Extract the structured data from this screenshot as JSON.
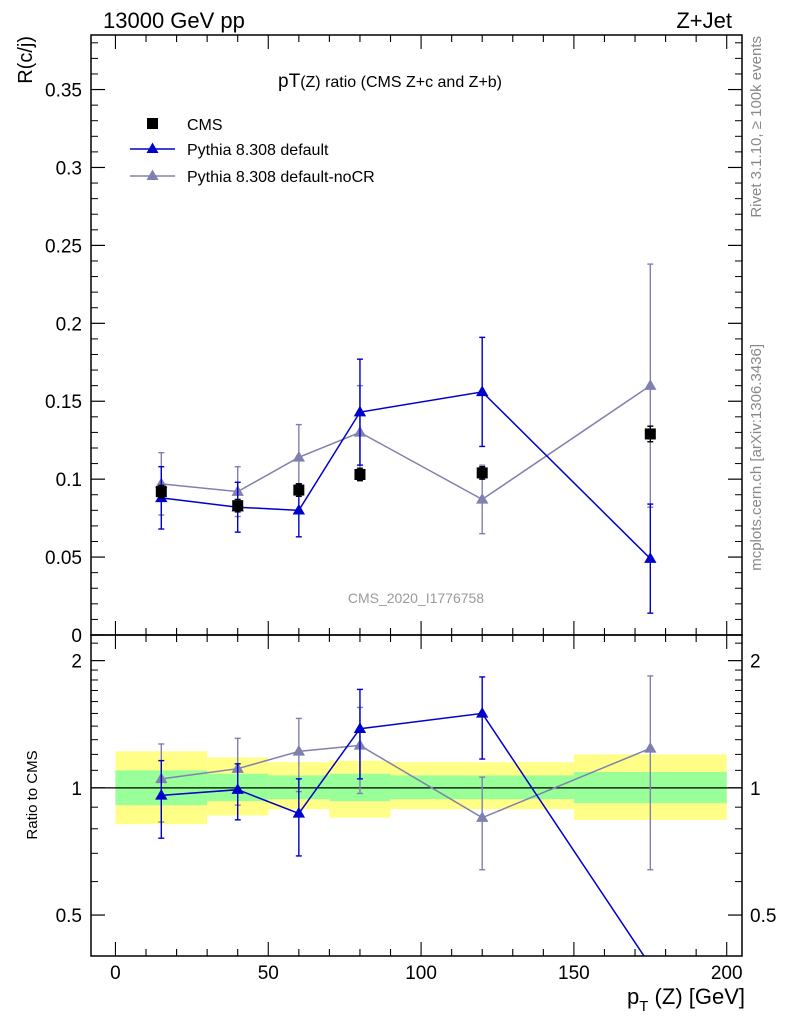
{
  "header": {
    "left": "13000 GeV pp",
    "right": "Z+Jet"
  },
  "side_labels": {
    "rivet": "Rivet 3.1.10, ≥ 100k events",
    "mcplots": "mcplots.cern.ch [arXiv:1306.3436]"
  },
  "watermark": "CMS_2020_I1776758",
  "colors": {
    "data": "#000000",
    "pythia_default": "#0000cc",
    "pythia_nocr": "#8080b0",
    "band_inner": "#99ff99",
    "band_outer": "#ffff88"
  },
  "chart_data": [
    {
      "type": "scatter",
      "title": "pT(Z) ratio (CMS  Z+c and Z+b)",
      "title_main": "pT",
      "title_sub": "(Z) ratio (CMS  Z+c and Z+b)",
      "ylabel": "R(c/j)",
      "ylim": [
        0,
        0.385
      ],
      "yticks": [
        0,
        0.05,
        0.1,
        0.15,
        0.2,
        0.25,
        0.3,
        0.35
      ],
      "yticklabels": [
        "0",
        "0.05",
        "0.1",
        "0.15",
        "0.2",
        "0.25",
        "0.3",
        "0.35"
      ],
      "xlim": [
        -8,
        205
      ],
      "legend_position": "top-left",
      "series": [
        {
          "name": "CMS",
          "style": "data",
          "x": [
            15,
            40,
            60,
            80,
            120,
            175
          ],
          "y": [
            0.092,
            0.083,
            0.093,
            0.103,
            0.104,
            0.129
          ],
          "yerr": [
            0.004,
            0.004,
            0.004,
            0.004,
            0.004,
            0.005
          ]
        },
        {
          "name": "Pythia 8.308 default",
          "style": "default",
          "x": [
            15,
            40,
            60,
            80,
            120,
            175
          ],
          "y": [
            0.088,
            0.082,
            0.08,
            0.143,
            0.156,
            0.049
          ],
          "yerr": [
            0.02,
            0.016,
            0.017,
            0.034,
            0.035,
            0.035
          ]
        },
        {
          "name": "Pythia 8.308 default-noCR",
          "style": "nocr",
          "x": [
            15,
            40,
            60,
            80,
            120,
            175
          ],
          "y": [
            0.097,
            0.092,
            0.114,
            0.13,
            0.087,
            0.16
          ],
          "yerr": [
            0.02,
            0.016,
            0.021,
            0.03,
            0.022,
            0.078
          ]
        }
      ]
    },
    {
      "type": "scatter",
      "ylabel": "Ratio to CMS",
      "xlabel": "p_T (Z) [GeV]",
      "xlabel_main": "p",
      "xlabel_sub": "T",
      "xlabel_rest": " (Z) [GeV]",
      "ylim": [
        0.4,
        2.3
      ],
      "ylog": true,
      "yticks": [
        0.5,
        1,
        2
      ],
      "yticklabels": [
        "0.5",
        "1",
        "2"
      ],
      "xlim": [
        -8,
        205
      ],
      "xticks": [
        0,
        50,
        100,
        150,
        200
      ],
      "xticklabels": [
        "0",
        "50",
        "100",
        "150",
        "200"
      ],
      "bands": [
        {
          "x0": 0,
          "x1": 30,
          "inner": [
            0.91,
            1.1
          ],
          "outer": [
            0.82,
            1.22
          ]
        },
        {
          "x0": 30,
          "x1": 50,
          "inner": [
            0.93,
            1.08
          ],
          "outer": [
            0.86,
            1.18
          ]
        },
        {
          "x0": 50,
          "x1": 70,
          "inner": [
            0.94,
            1.07
          ],
          "outer": [
            0.89,
            1.15
          ]
        },
        {
          "x0": 70,
          "x1": 90,
          "inner": [
            0.93,
            1.08
          ],
          "outer": [
            0.85,
            1.16
          ]
        },
        {
          "x0": 90,
          "x1": 150,
          "inner": [
            0.94,
            1.07
          ],
          "outer": [
            0.89,
            1.15
          ]
        },
        {
          "x0": 150,
          "x1": 200,
          "inner": [
            0.92,
            1.09
          ],
          "outer": [
            0.84,
            1.2
          ]
        }
      ],
      "series": [
        {
          "name": "Pythia 8.308 default",
          "style": "default",
          "x": [
            15,
            40,
            60,
            80,
            120,
            175
          ],
          "y": [
            0.96,
            0.99,
            0.87,
            1.38,
            1.5,
            0.38
          ],
          "yerr": [
            0.2,
            0.15,
            0.18,
            0.33,
            0.33,
            0
          ]
        },
        {
          "name": "Pythia 8.308 default-noCR",
          "style": "nocr",
          "x": [
            15,
            40,
            60,
            80,
            120,
            175
          ],
          "y": [
            1.05,
            1.11,
            1.22,
            1.26,
            0.85,
            1.24
          ],
          "yerr": [
            0.22,
            0.2,
            0.24,
            0.29,
            0.21,
            0.6
          ]
        }
      ]
    }
  ]
}
